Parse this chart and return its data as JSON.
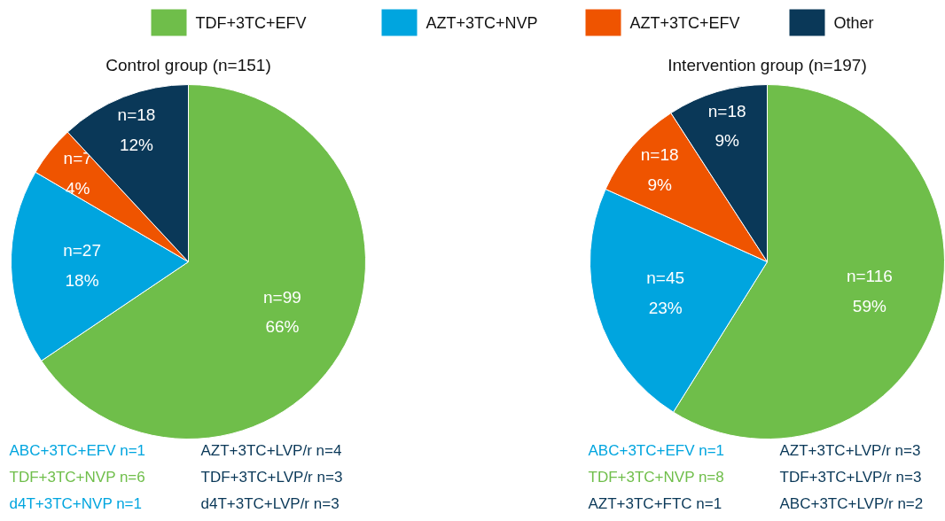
{
  "chart_data": [
    {
      "type": "pie",
      "title": "Control group (n=151)",
      "categories": [
        "TDF+3TC+EFV",
        "AZT+3TC+NVP",
        "AZT+3TC+EFV",
        "Other"
      ],
      "values": [
        99,
        27,
        7,
        18
      ],
      "colors": [
        "#6fbe4a",
        "#00a5df",
        "#ef5400",
        "#0a3858"
      ],
      "value_labels": [
        "n=99\n66%",
        "n=27\n18%",
        "n=7\n4%",
        "n=18\n12%"
      ],
      "legend": "top",
      "annotations": [
        "ABC+3TC+EFV n=1",
        "TDF+3TC+NVP n=6",
        "d4T+3TC+NVP n=1",
        "AZT+3TC+LVP/r n=4",
        "TDF+3TC+LVP/r n=3",
        "d4T+3TC+LVP/r n=3"
      ]
    },
    {
      "type": "pie",
      "title": "Intervention group (n=197)",
      "categories": [
        null,
        null,
        null,
        null
      ],
      "values": [
        116,
        45,
        18,
        18
      ],
      "colors": [
        "#6fbe4a",
        "#00a5df",
        "#ef5400",
        "#0a3858"
      ],
      "value_labels": [
        "n=116\n59%",
        "n=45\n23%",
        "n=18\n9%",
        "n=18\n9%"
      ],
      "annotations": [
        "ABC+3TC+EFV n=1",
        "TDF+3TC+NVP n=8",
        "AZT+3TC+FTC n=1",
        "AZT+3TC+LVP/r n=3",
        "TDF+3TC+LVP/r n=3",
        "ABC+3TC+LVP/r n=2"
      ]
    }
  ]
}
